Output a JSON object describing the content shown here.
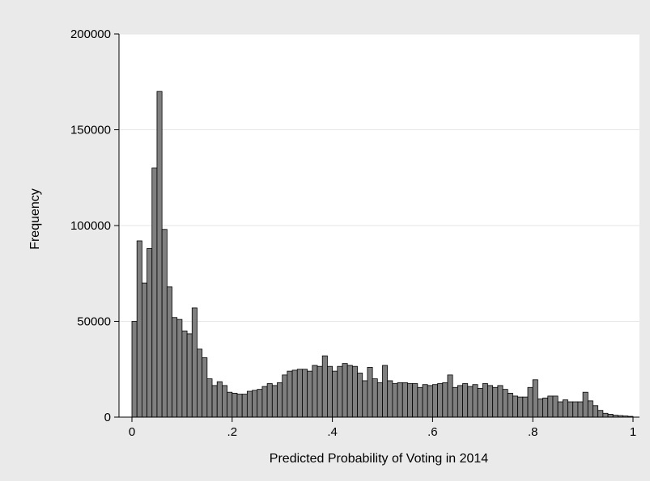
{
  "chart_data": {
    "type": "bar",
    "xlabel": "Predicted Probability of Voting in 2014",
    "ylabel": "Frequency",
    "xlim": [
      0,
      1
    ],
    "ylim": [
      0,
      200000
    ],
    "bin_width": 0.01,
    "x_ticks": [
      {
        "value": 0,
        "label": "0"
      },
      {
        "value": 0.2,
        "label": ".2"
      },
      {
        "value": 0.4,
        "label": ".4"
      },
      {
        "value": 0.6,
        "label": ".6"
      },
      {
        "value": 0.8,
        "label": ".8"
      },
      {
        "value": 1,
        "label": "1"
      }
    ],
    "y_ticks": [
      {
        "value": 0,
        "label": "0"
      },
      {
        "value": 50000,
        "label": "50000"
      },
      {
        "value": 100000,
        "label": "100000"
      },
      {
        "value": 150000,
        "label": "150000"
      },
      {
        "value": 200000,
        "label": "200000"
      }
    ],
    "grid": "horizontal",
    "colors": {
      "outer_background": "#eaeaea",
      "plot_background": "#ffffff",
      "bar_fill": "#7f7f7f",
      "bar_stroke": "#000000",
      "grid": "#e6e6e6"
    },
    "series": [
      {
        "x": [
          0,
          0.01,
          0.02,
          0.03,
          0.04,
          0.05,
          0.06,
          0.07,
          0.08,
          0.09,
          0.1,
          0.11,
          0.12,
          0.13,
          0.14,
          0.15,
          0.16,
          0.17,
          0.18,
          0.19,
          0.2,
          0.21,
          0.22,
          0.23,
          0.24,
          0.25,
          0.26,
          0.27,
          0.28,
          0.29,
          0.3,
          0.31,
          0.32,
          0.33,
          0.34,
          0.35,
          0.36,
          0.37,
          0.38,
          0.39,
          0.4,
          0.41,
          0.42,
          0.43,
          0.44,
          0.45,
          0.46,
          0.47,
          0.48,
          0.49,
          0.5,
          0.51,
          0.52,
          0.53,
          0.54,
          0.55,
          0.56,
          0.57,
          0.58,
          0.59,
          0.6,
          0.61,
          0.62,
          0.63,
          0.64,
          0.65,
          0.66,
          0.67,
          0.68,
          0.69,
          0.7,
          0.71,
          0.72,
          0.73,
          0.74,
          0.75,
          0.76,
          0.77,
          0.78,
          0.79,
          0.8,
          0.81,
          0.82,
          0.83,
          0.84,
          0.85,
          0.86,
          0.87,
          0.88,
          0.89,
          0.9,
          0.91,
          0.92,
          0.93,
          0.94,
          0.95,
          0.96,
          0.97,
          0.98,
          0.99
        ],
        "values": [
          50000,
          92000,
          70000,
          88000,
          130000,
          170000,
          98000,
          68000,
          52000,
          51000,
          45000,
          43500,
          57000,
          35500,
          31000,
          20000,
          16500,
          18500,
          16500,
          13000,
          12500,
          12000,
          12000,
          13500,
          14000,
          14500,
          16000,
          17500,
          16500,
          18000,
          22000,
          24000,
          24500,
          25000,
          25000,
          24000,
          27000,
          26500,
          32000,
          26500,
          24000,
          26500,
          28000,
          27000,
          26500,
          23000,
          19000,
          26000,
          20000,
          18000,
          27000,
          19000,
          17500,
          18000,
          18000,
          17500,
          17500,
          15500,
          17000,
          16500,
          17000,
          17500,
          18000,
          22000,
          15500,
          16500,
          17500,
          16000,
          17000,
          15000,
          17500,
          16500,
          15500,
          16500,
          14500,
          12500,
          11000,
          10500,
          10500,
          15500,
          19500,
          9500,
          10000,
          11000,
          11000,
          8000,
          9000,
          8000,
          8000,
          8000,
          13000,
          8500,
          6000,
          3500,
          2000,
          1500,
          1000,
          800,
          600,
          400
        ]
      }
    ]
  }
}
